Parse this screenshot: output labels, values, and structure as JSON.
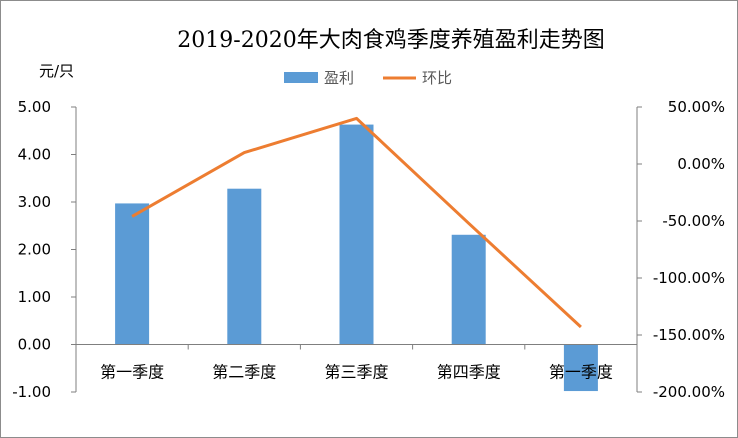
{
  "chart_data": {
    "type": "bar",
    "title": "2019-2020年大肉食鸡季度养殖盈利走势图",
    "y_unit": "元/只",
    "categories": [
      "第一季度",
      "第二季度",
      "第三季度",
      "第四季度",
      "第一季度"
    ],
    "series": [
      {
        "name": "盈利",
        "type": "bar",
        "axis": "left",
        "values": [
          2.97,
          3.28,
          4.63,
          2.31,
          -0.98
        ]
      },
      {
        "name": "环比",
        "type": "line",
        "axis": "right",
        "values": [
          -46,
          10,
          40,
          -52,
          -143
        ]
      }
    ],
    "left_axis": {
      "ylim": [
        -1,
        5
      ],
      "ticks": [
        5,
        4,
        3,
        2,
        1,
        0,
        -1
      ],
      "tick_labels": [
        "5.00",
        "4.00",
        "3.00",
        "2.00",
        "1.00",
        "0.00",
        "-1.00"
      ]
    },
    "right_axis": {
      "ylim": [
        -200,
        50
      ],
      "ticks": [
        50,
        0,
        -50,
        -100,
        -150,
        -200
      ],
      "tick_labels": [
        "50.00%",
        "0.00%",
        "-50.00%",
        "-100.00%",
        "-150.00%",
        "-200.00%"
      ]
    },
    "legend_position": "top",
    "colors": {
      "bar": "#5b9bd5",
      "line": "#ed7d31",
      "axis": "#7f7f7f"
    }
  }
}
